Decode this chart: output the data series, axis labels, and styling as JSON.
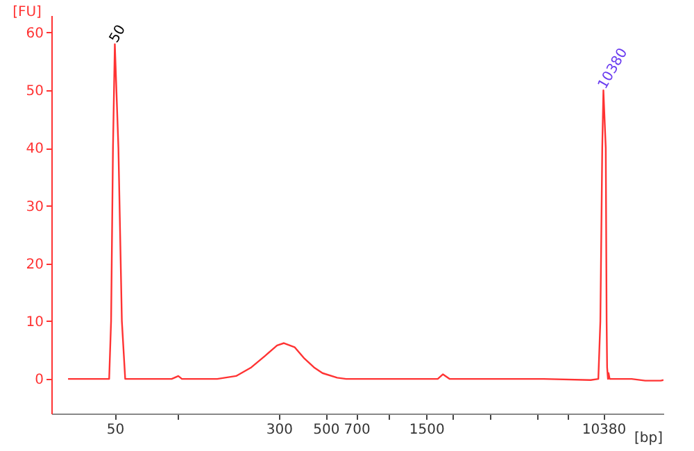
{
  "chart_data": {
    "type": "line",
    "xlabel": "[bp]",
    "ylabel": "[FU]",
    "x": [
      30,
      47,
      48,
      49,
      50,
      52,
      54,
      56,
      93,
      100,
      104,
      153,
      188,
      222,
      258,
      294,
      317,
      356,
      397,
      440,
      483,
      567,
      625,
      1700,
      1800,
      1933,
      5400,
      9030,
      9820,
      10040,
      10250,
      10380,
      10650,
      10750,
      10810,
      10910,
      10980,
      11110,
      14130,
      16390,
      19410,
      20000
    ],
    "series": [
      {
        "color": "#ff3333",
        "values": [
          0,
          0,
          10,
          40,
          58,
          40,
          10,
          0,
          0,
          0.5,
          0,
          0,
          0.5,
          2,
          4,
          5.8,
          6.2,
          5.5,
          3.5,
          2,
          1,
          0.2,
          0,
          0,
          0.8,
          0,
          0,
          -0.2,
          0,
          10,
          40,
          50,
          40,
          10,
          2,
          0,
          1,
          0,
          0,
          -0.3,
          -0.3,
          -0.2
        ]
      }
    ],
    "xlim": [
      25,
      20000
    ],
    "log": "x",
    "xticks": [
      50,
      {
        "value": 100,
        "label": null
      },
      300,
      500,
      700,
      {
        "value": 1000,
        "label": null
      },
      1500,
      {
        "value": 2000,
        "label": null
      },
      {
        "value": 3000,
        "label": null
      },
      {
        "value": 5000,
        "label": null
      },
      {
        "value": 7000,
        "label": null
      },
      10380
    ],
    "ylim": [
      -6,
      63
    ],
    "yticks": [
      0,
      10,
      20,
      30,
      40,
      50,
      60
    ],
    "annotations": [
      {
        "text": "50",
        "x": 50,
        "y": 58
      },
      {
        "text": "10380",
        "x": 10380,
        "y": 50
      }
    ],
    "grid": false,
    "marker": "none",
    "line_style": "solid"
  }
}
